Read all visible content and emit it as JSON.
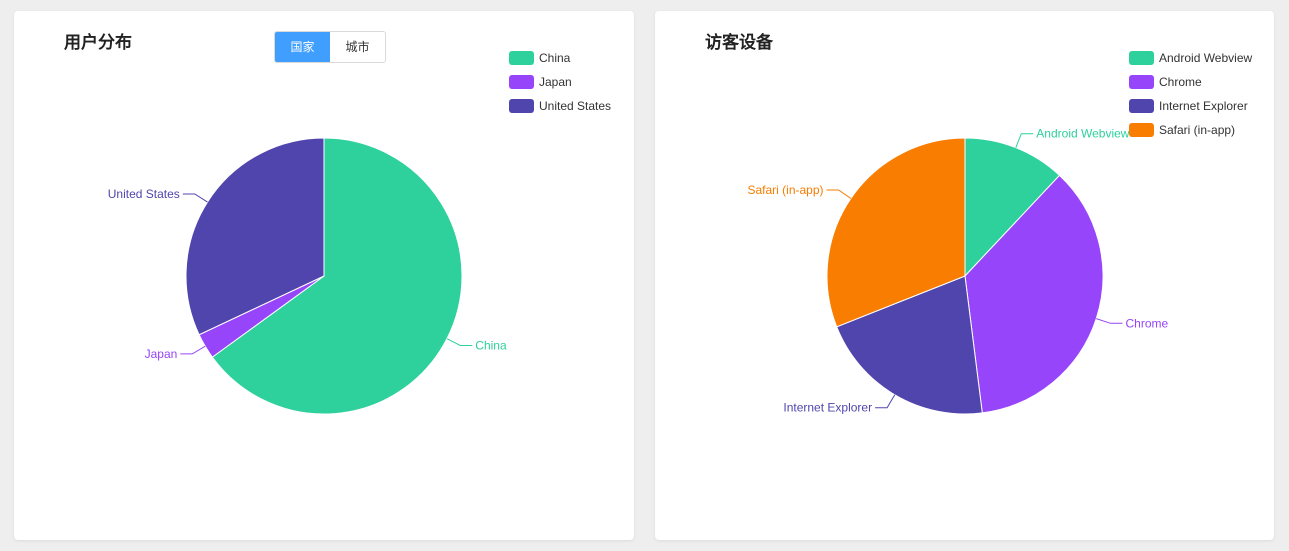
{
  "left_panel": {
    "title": "用户分布",
    "toggle": [
      "国家",
      "城市"
    ],
    "active_toggle": 0
  },
  "right_panel": {
    "title": "访客设备"
  },
  "chart_data": [
    {
      "type": "pie",
      "title": "用户分布",
      "labels": [
        "China",
        "Japan",
        "United States"
      ],
      "values": [
        65,
        3,
        32
      ],
      "colors": [
        "#2ed09c",
        "#9645fa",
        "#5045ad"
      ],
      "legend_position": "top-right",
      "start_angle_deg": 90,
      "direction": "clockwise"
    },
    {
      "type": "pie",
      "title": "访客设备",
      "labels": [
        "Android Webview",
        "Chrome",
        "Internet Explorer",
        "Safari (in-app)"
      ],
      "values": [
        12,
        36,
        21,
        31
      ],
      "colors": [
        "#2ed09c",
        "#9645fa",
        "#5045ad",
        "#f87d00"
      ],
      "legend_position": "top-right",
      "start_angle_deg": 90,
      "direction": "clockwise"
    }
  ]
}
